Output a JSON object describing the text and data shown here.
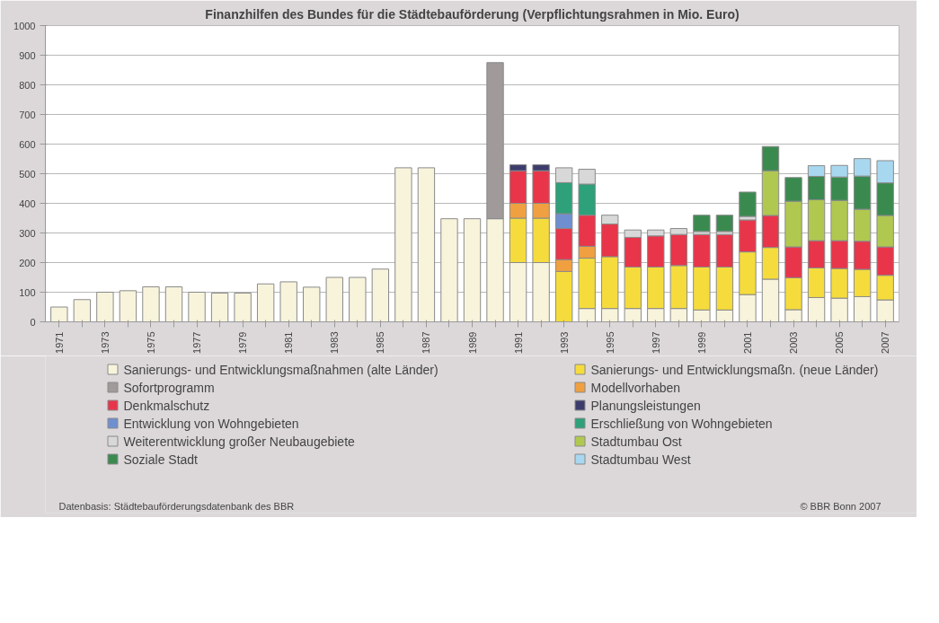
{
  "chart_data": {
    "type": "bar",
    "stacked": true,
    "title": "Finanzhilfen des Bundes für die Städtebauförderung (Verpflichtungsrahmen in Mio. Euro)",
    "categories": [
      "1971",
      null,
      "1973",
      null,
      "1975",
      null,
      "1977",
      null,
      "1979",
      null,
      "1981",
      null,
      "1983",
      null,
      "1985",
      null,
      "1987",
      null,
      "1989",
      null,
      "1991",
      null,
      "1993",
      null,
      "1995",
      null,
      "1997",
      null,
      "1999",
      null,
      "2001",
      null,
      "2003",
      null,
      "2005",
      null,
      "2007"
    ],
    "ylim": [
      0,
      1000
    ],
    "yticks": [
      0,
      100,
      200,
      300,
      400,
      500,
      600,
      700,
      800,
      900,
      1000
    ],
    "grid": "y",
    "legend": "bottom",
    "series": [
      {
        "name": "Sanierungs- und Entwicklungsmaßnahmen (alte Länder)",
        "color": "#f8f4dc",
        "values": [
          50,
          75,
          100,
          105,
          118,
          118,
          100,
          97,
          97,
          128,
          135,
          117,
          150,
          150,
          178,
          520,
          520,
          348,
          348,
          348,
          200,
          200,
          null,
          45,
          45,
          45,
          45,
          45,
          40,
          40,
          92,
          144,
          41,
          82,
          80,
          85,
          74
        ]
      },
      {
        "name": "Sanierungs- und Entwicklungsmaßn. (neue Länder)",
        "color": "#f5dc3c",
        "values": [
          null,
          null,
          null,
          null,
          null,
          null,
          null,
          null,
          null,
          null,
          null,
          null,
          null,
          null,
          null,
          null,
          null,
          null,
          null,
          null,
          150,
          150,
          170,
          170,
          175,
          140,
          140,
          145,
          145,
          145,
          144,
          107,
          108,
          100,
          100,
          92,
          83
        ]
      },
      {
        "name": "Modellvorhaben",
        "color": "#f0a040",
        "values": [
          null,
          null,
          null,
          null,
          null,
          null,
          null,
          null,
          null,
          null,
          null,
          null,
          null,
          null,
          null,
          null,
          null,
          null,
          null,
          null,
          50,
          50,
          40,
          40,
          null,
          null,
          null,
          null,
          null,
          null,
          null,
          null,
          null,
          null,
          null,
          null,
          null
        ]
      },
      {
        "name": "Denkmalschutz",
        "color": "#e8354a",
        "values": [
          null,
          null,
          null,
          null,
          null,
          null,
          null,
          null,
          null,
          null,
          null,
          null,
          null,
          null,
          null,
          null,
          null,
          null,
          null,
          null,
          110,
          110,
          105,
          105,
          110,
          100,
          105,
          105,
          110,
          110,
          108,
          108,
          104,
          92,
          94,
          95,
          96
        ]
      },
      {
        "name": "Entwicklung von Wohngebieten",
        "color": "#6f8fd0",
        "values": [
          null,
          null,
          null,
          null,
          null,
          null,
          null,
          null,
          null,
          null,
          null,
          null,
          null,
          null,
          null,
          null,
          null,
          null,
          null,
          null,
          null,
          null,
          50,
          null,
          null,
          null,
          null,
          null,
          null,
          null,
          null,
          null,
          null,
          null,
          null,
          null,
          null
        ]
      },
      {
        "name": "Erschließung von Wohngebieten",
        "color": "#2ea07a",
        "values": [
          null,
          null,
          null,
          null,
          null,
          null,
          null,
          null,
          null,
          null,
          null,
          null,
          null,
          null,
          null,
          null,
          null,
          null,
          null,
          null,
          null,
          null,
          105,
          105,
          null,
          null,
          null,
          null,
          null,
          null,
          null,
          null,
          null,
          null,
          null,
          null,
          null
        ]
      },
      {
        "name": "Weiterentwicklung großer Neubaugebiete",
        "color": "#d8d8d8",
        "values": [
          null,
          null,
          null,
          null,
          null,
          null,
          null,
          null,
          null,
          null,
          null,
          null,
          null,
          null,
          null,
          null,
          null,
          null,
          null,
          null,
          null,
          null,
          50,
          50,
          30,
          25,
          20,
          20,
          10,
          10,
          12,
          null,
          null,
          null,
          null,
          null,
          null
        ]
      },
      {
        "name": "Planungsleistungen",
        "color": "#3c3c6c",
        "values": [
          null,
          null,
          null,
          null,
          null,
          null,
          null,
          null,
          null,
          null,
          null,
          null,
          null,
          null,
          null,
          null,
          null,
          null,
          null,
          null,
          20,
          20,
          null,
          null,
          null,
          null,
          null,
          null,
          null,
          null,
          null,
          null,
          null,
          null,
          null,
          null,
          null
        ]
      },
      {
        "name": "Stadtumbau Ost",
        "color": "#b0c850",
        "values": [
          null,
          null,
          null,
          null,
          null,
          null,
          null,
          null,
          null,
          null,
          null,
          null,
          null,
          null,
          null,
          null,
          null,
          null,
          null,
          null,
          null,
          null,
          null,
          null,
          null,
          null,
          null,
          null,
          null,
          null,
          null,
          151,
          154,
          138,
          136,
          108,
          106
        ]
      },
      {
        "name": "Soziale Stadt",
        "color": "#3a8a50",
        "values": [
          null,
          null,
          null,
          null,
          null,
          null,
          null,
          null,
          null,
          null,
          null,
          null,
          null,
          null,
          null,
          null,
          null,
          null,
          null,
          null,
          null,
          null,
          null,
          null,
          null,
          null,
          null,
          null,
          55,
          55,
          82,
          82,
          80,
          79,
          79,
          112,
          110
        ]
      },
      {
        "name": "Stadtumbau West",
        "color": "#a8d8f0",
        "values": [
          null,
          null,
          null,
          null,
          null,
          null,
          null,
          null,
          null,
          null,
          null,
          null,
          null,
          null,
          null,
          null,
          null,
          null,
          null,
          null,
          null,
          null,
          null,
          null,
          null,
          null,
          null,
          null,
          null,
          null,
          null,
          null,
          null,
          36,
          39,
          59,
          75
        ]
      },
      {
        "name": "Sofortprogramm",
        "color": "#a09a9a",
        "values": [
          null,
          null,
          null,
          null,
          null,
          null,
          null,
          null,
          null,
          null,
          null,
          null,
          null,
          null,
          null,
          null,
          null,
          null,
          null,
          527,
          null,
          null,
          null,
          null,
          null,
          null,
          null,
          null,
          null,
          null,
          null,
          null,
          null,
          null,
          null,
          null,
          null
        ]
      }
    ],
    "annotations": [
      "Datenbasis: Städtebauförderungsdatenbank des BBR",
      "© BBR Bonn 2007"
    ]
  }
}
